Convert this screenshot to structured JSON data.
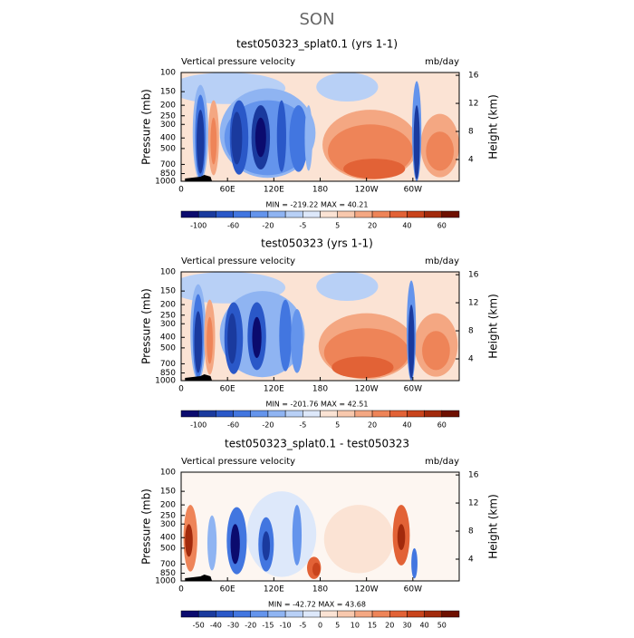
{
  "title": "SON",
  "chart_data": [
    {
      "type": "contour",
      "title": "test050323_splat0.1 (yrs 1-1)",
      "subtitle": "Vertical pressure velocity",
      "units": "mb/day",
      "ylabel": "Pressure (mb)",
      "y2label": "Height (km)",
      "log_scale": true,
      "xlim": [
        0,
        360
      ],
      "xticks": [
        0,
        {
          "value": 60,
          "label": "60E"
        },
        {
          "value": 120,
          "label": "120E"
        },
        180,
        {
          "value": 240,
          "label": "120W"
        },
        {
          "value": 300,
          "label": "60W"
        }
      ],
      "ylim": [
        1000,
        100
      ],
      "yticks": [
        100,
        150,
        200,
        250,
        300,
        400,
        500,
        700,
        850,
        1000
      ],
      "y2lim": [
        0.9,
        16.4
      ],
      "y2ticks": [
        4,
        8,
        12,
        16
      ],
      "stats": "MIN = -219.22   MAX =  40.21",
      "levels": [
        -100,
        -80,
        -60,
        -40,
        -20,
        -10,
        -5,
        0,
        5,
        10,
        20,
        30,
        40,
        50,
        60
      ],
      "colorbar_label_stride": 2,
      "colors": [
        "#0b0b6e",
        "#1a3a9e",
        "#2a58c8",
        "#4276e0",
        "#6494ec",
        "#8fb4f2",
        "#b8d0f6",
        "#dde8fa",
        "#fbe3d4",
        "#f8c8ad",
        "#f4a782",
        "#ee8458",
        "#e26236",
        "#c9441c",
        "#a22a0c",
        "#6e1000"
      ]
    },
    {
      "type": "contour",
      "title": "test050323 (yrs 1-1)",
      "subtitle": "Vertical pressure velocity",
      "units": "mb/day",
      "ylabel": "Pressure (mb)",
      "y2label": "Height (km)",
      "log_scale": true,
      "xlim": [
        0,
        360
      ],
      "xticks": [
        0,
        {
          "value": 60,
          "label": "60E"
        },
        {
          "value": 120,
          "label": "120E"
        },
        180,
        {
          "value": 240,
          "label": "120W"
        },
        {
          "value": 300,
          "label": "60W"
        }
      ],
      "ylim": [
        1000,
        100
      ],
      "yticks": [
        100,
        150,
        200,
        250,
        300,
        400,
        500,
        700,
        850,
        1000
      ],
      "y2lim": [
        0.9,
        16.4
      ],
      "y2ticks": [
        4,
        8,
        12,
        16
      ],
      "stats": "MIN = -201.76   MAX =  42.51",
      "levels": [
        -100,
        -80,
        -60,
        -40,
        -20,
        -10,
        -5,
        0,
        5,
        10,
        20,
        30,
        40,
        50,
        60
      ],
      "colorbar_label_stride": 2,
      "colors": [
        "#0b0b6e",
        "#1a3a9e",
        "#2a58c8",
        "#4276e0",
        "#6494ec",
        "#8fb4f2",
        "#b8d0f6",
        "#dde8fa",
        "#fbe3d4",
        "#f8c8ad",
        "#f4a782",
        "#ee8458",
        "#e26236",
        "#c9441c",
        "#a22a0c",
        "#6e1000"
      ]
    },
    {
      "type": "contour",
      "title": "test050323_splat0.1 - test050323",
      "subtitle": "Vertical pressure velocity",
      "units": "mb/day",
      "ylabel": "Pressure (mb)",
      "y2label": "Height (km)",
      "log_scale": true,
      "xlim": [
        0,
        360
      ],
      "xticks": [
        0,
        {
          "value": 60,
          "label": "60E"
        },
        {
          "value": 120,
          "label": "120E"
        },
        180,
        {
          "value": 240,
          "label": "120W"
        },
        {
          "value": 300,
          "label": "60W"
        }
      ],
      "ylim": [
        1000,
        100
      ],
      "yticks": [
        100,
        150,
        200,
        250,
        300,
        400,
        500,
        700,
        850,
        1000
      ],
      "y2lim": [
        0.9,
        16.4
      ],
      "y2ticks": [
        4,
        8,
        12,
        16
      ],
      "stats": "MIN = -42.72   MAX =  43.68",
      "levels": [
        -50,
        -40,
        -30,
        -20,
        -15,
        -10,
        -5,
        0,
        5,
        10,
        15,
        20,
        30,
        40,
        50
      ],
      "colorbar_label_stride": 1,
      "colors": [
        "#0b0b6e",
        "#1a3a9e",
        "#2a58c8",
        "#4276e0",
        "#6494ec",
        "#8fb4f2",
        "#b8d0f6",
        "#dde8fa",
        "#fbe3d4",
        "#f8c8ad",
        "#f4a782",
        "#ee8458",
        "#e26236",
        "#c9441c",
        "#a22a0c",
        "#6e1000"
      ]
    }
  ]
}
